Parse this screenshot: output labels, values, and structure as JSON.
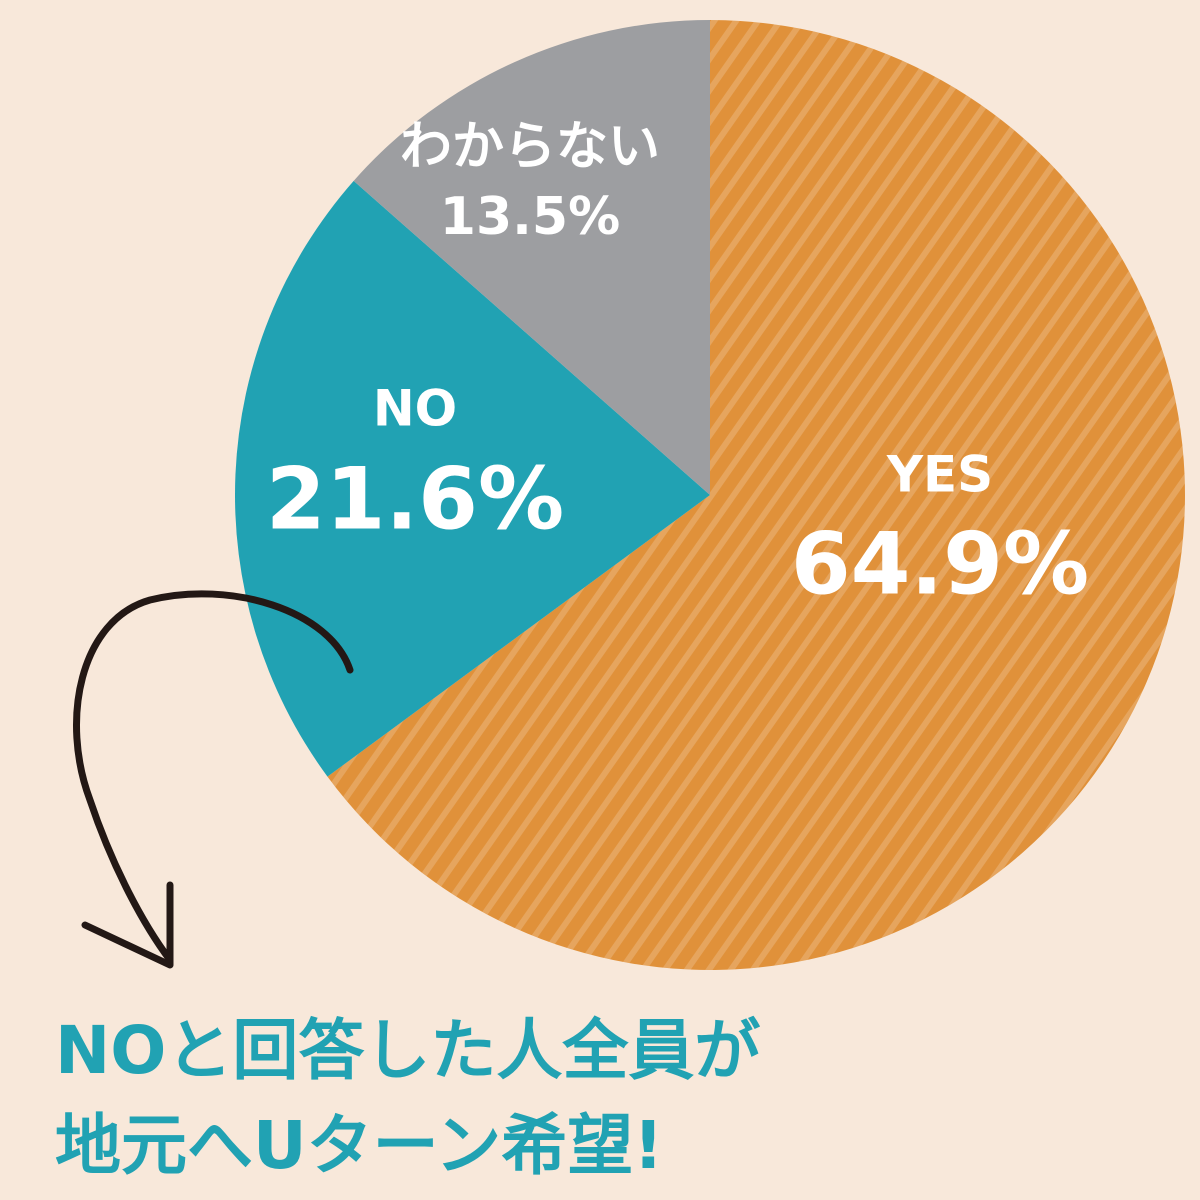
{
  "chart_data": {
    "type": "pie",
    "categories": [
      "YES",
      "NO",
      "わからない"
    ],
    "values": [
      64.9,
      21.6,
      13.5
    ],
    "value_labels": [
      "64.9%",
      "21.6%",
      "13.5%"
    ],
    "colors": [
      "#e0913a",
      "#21a2b3",
      "#9d9ea1"
    ],
    "annotations": [
      "NOと回答した人全員が",
      "地元へUターン希望!"
    ]
  }
}
